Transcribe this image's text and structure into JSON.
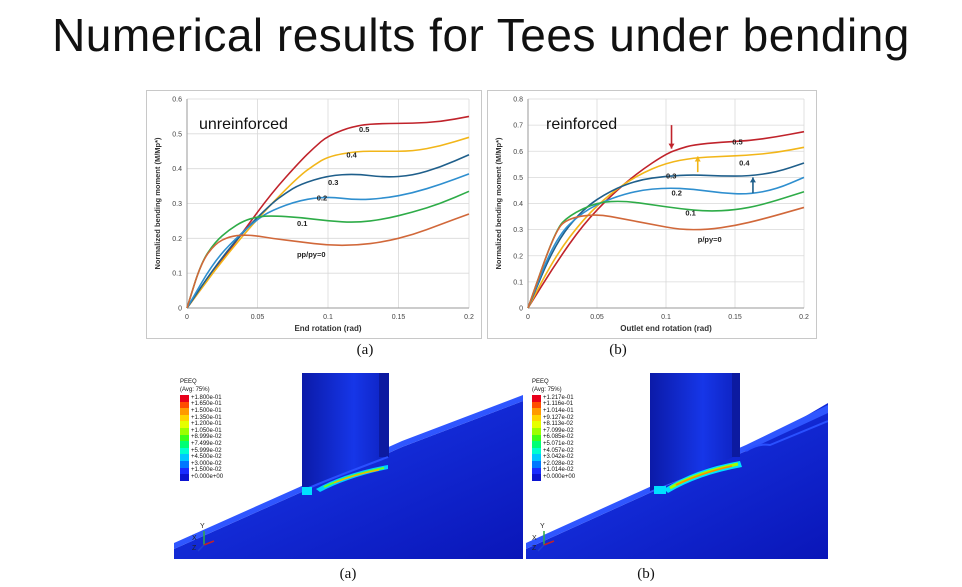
{
  "page": {
    "title": "Numerical results for Tees under bending"
  },
  "chart_data": [
    {
      "type": "line",
      "panel_label": "unreinforced",
      "caption": "(a)",
      "xlabel": "End rotation (rad)",
      "ylabel": "Normalized bending moment (M/Mp*)",
      "xlim": [
        0,
        0.2
      ],
      "ylim": [
        0,
        0.6
      ],
      "xticks": [
        "0",
        "0.05",
        "0.1",
        "0.15",
        "0.2"
      ],
      "yticks": [
        "0",
        "0.1",
        "0.2",
        "0.3",
        "0.4",
        "0.5",
        "0.6"
      ],
      "grid": true,
      "series": [
        {
          "name": "0.5",
          "color": "#c0232b",
          "x": [
            0,
            0.02,
            0.04,
            0.06,
            0.08,
            0.09,
            0.1,
            0.12,
            0.14,
            0.16,
            0.18,
            0.2
          ],
          "y": [
            0,
            0.11,
            0.22,
            0.33,
            0.42,
            0.46,
            0.495,
            0.525,
            0.53,
            0.53,
            0.535,
            0.55
          ],
          "label_at": [
            0.122,
            0.505
          ]
        },
        {
          "name": "0.4",
          "color": "#f2b619",
          "x": [
            0,
            0.02,
            0.04,
            0.06,
            0.08,
            0.09,
            0.1,
            0.12,
            0.14,
            0.16,
            0.18,
            0.2
          ],
          "y": [
            0,
            0.11,
            0.21,
            0.3,
            0.38,
            0.41,
            0.435,
            0.45,
            0.45,
            0.45,
            0.465,
            0.49
          ],
          "label_at": [
            0.113,
            0.432
          ]
        },
        {
          "name": "0.3",
          "color": "#1f5f8b",
          "x": [
            0,
            0.02,
            0.04,
            0.06,
            0.07,
            0.08,
            0.1,
            0.12,
            0.14,
            0.16,
            0.18,
            0.2
          ],
          "y": [
            0,
            0.12,
            0.22,
            0.3,
            0.33,
            0.355,
            0.38,
            0.385,
            0.375,
            0.38,
            0.405,
            0.44
          ],
          "label_at": [
            0.1,
            0.353
          ]
        },
        {
          "name": "0.2",
          "color": "#2f8fcf",
          "x": [
            0,
            0.02,
            0.04,
            0.05,
            0.06,
            0.08,
            0.1,
            0.12,
            0.14,
            0.16,
            0.18,
            0.2
          ],
          "y": [
            0,
            0.14,
            0.22,
            0.255,
            0.28,
            0.31,
            0.32,
            0.31,
            0.315,
            0.33,
            0.355,
            0.385
          ],
          "label_at": [
            0.092,
            0.308
          ]
        },
        {
          "name": "0.1",
          "color": "#2eac48",
          "x": [
            0,
            0.01,
            0.02,
            0.03,
            0.04,
            0.05,
            0.06,
            0.08,
            0.1,
            0.12,
            0.14,
            0.16,
            0.18,
            0.2
          ],
          "y": [
            0,
            0.13,
            0.19,
            0.225,
            0.25,
            0.262,
            0.265,
            0.26,
            0.25,
            0.245,
            0.255,
            0.275,
            0.3,
            0.335
          ],
          "label_at": [
            0.078,
            0.235
          ]
        },
        {
          "name": "pp/py=0",
          "color": "#d1683a",
          "x": [
            0,
            0.01,
            0.02,
            0.03,
            0.04,
            0.05,
            0.06,
            0.08,
            0.1,
            0.12,
            0.14,
            0.16,
            0.18,
            0.2
          ],
          "y": [
            0,
            0.13,
            0.185,
            0.205,
            0.21,
            0.207,
            0.2,
            0.19,
            0.18,
            0.18,
            0.19,
            0.21,
            0.24,
            0.27
          ],
          "label_at": [
            0.078,
            0.146
          ]
        }
      ]
    },
    {
      "type": "line",
      "panel_label": "reinforced",
      "caption": "(b)",
      "xlabel": "Outlet end rotation (rad)",
      "ylabel": "Normalized bending moment (M/Mp*)",
      "xlim": [
        0,
        0.2
      ],
      "ylim": [
        0,
        0.8
      ],
      "xticks": [
        "0",
        "0.05",
        "0.1",
        "0.15",
        "0.2"
      ],
      "yticks": [
        "0",
        "0.1",
        "0.2",
        "0.3",
        "0.4",
        "0.5",
        "0.6",
        "0.7",
        "0.8"
      ],
      "grid": true,
      "series": [
        {
          "name": "0.5",
          "color": "#c0232b",
          "x": [
            0,
            0.02,
            0.04,
            0.06,
            0.08,
            0.1,
            0.11,
            0.12,
            0.14,
            0.16,
            0.18,
            0.2
          ],
          "y": [
            0,
            0.17,
            0.32,
            0.43,
            0.52,
            0.59,
            0.61,
            0.625,
            0.635,
            0.64,
            0.655,
            0.675
          ],
          "label_at": [
            0.148,
            0.625
          ]
        },
        {
          "name": "0.4",
          "color": "#f2b619",
          "x": [
            0,
            0.02,
            0.04,
            0.06,
            0.08,
            0.1,
            0.12,
            0.14,
            0.16,
            0.18,
            0.2
          ],
          "y": [
            0,
            0.2,
            0.34,
            0.44,
            0.51,
            0.555,
            0.575,
            0.58,
            0.585,
            0.595,
            0.615
          ],
          "label_at": [
            0.153,
            0.545
          ]
        },
        {
          "name": "0.3",
          "color": "#1f5f8b",
          "x": [
            0,
            0.02,
            0.04,
            0.06,
            0.08,
            0.1,
            0.12,
            0.14,
            0.16,
            0.18,
            0.2
          ],
          "y": [
            0,
            0.25,
            0.38,
            0.45,
            0.49,
            0.505,
            0.51,
            0.505,
            0.505,
            0.52,
            0.555
          ],
          "label_at": [
            0.1,
            0.495
          ]
        },
        {
          "name": "0.2",
          "color": "#2f8fcf",
          "x": [
            0,
            0.02,
            0.04,
            0.06,
            0.08,
            0.1,
            0.12,
            0.14,
            0.16,
            0.18,
            0.2
          ],
          "y": [
            0,
            0.27,
            0.37,
            0.42,
            0.45,
            0.46,
            0.455,
            0.44,
            0.435,
            0.455,
            0.5
          ],
          "label_at": [
            0.104,
            0.43
          ]
        },
        {
          "name": "0.1",
          "color": "#2eac48",
          "x": [
            0,
            0.02,
            0.03,
            0.05,
            0.07,
            0.09,
            0.11,
            0.13,
            0.15,
            0.17,
            0.2
          ],
          "y": [
            0,
            0.3,
            0.355,
            0.405,
            0.41,
            0.395,
            0.38,
            0.37,
            0.375,
            0.395,
            0.445
          ],
          "label_at": [
            0.114,
            0.355
          ]
        },
        {
          "name": "p/py=0",
          "color": "#d1683a",
          "x": [
            0,
            0.02,
            0.03,
            0.05,
            0.07,
            0.09,
            0.11,
            0.13,
            0.15,
            0.17,
            0.2
          ],
          "y": [
            0,
            0.3,
            0.345,
            0.36,
            0.34,
            0.32,
            0.3,
            0.3,
            0.315,
            0.34,
            0.385
          ],
          "label_at": [
            0.123,
            0.253
          ]
        }
      ],
      "arrows": [
        {
          "color": "#c0232b",
          "x": 0.104,
          "y_from": 0.7,
          "y_to": 0.61
        },
        {
          "color": "#f2b619",
          "x": 0.123,
          "y_from": 0.52,
          "y_to": 0.58
        },
        {
          "color": "#1f5f8b",
          "x": 0.163,
          "y_from": 0.44,
          "y_to": 0.5
        }
      ]
    }
  ],
  "fea": [
    {
      "caption": "(a)",
      "legend_title": "PEEQ",
      "legend_subtitle": "(Avg: 75%)",
      "legend_values": [
        "+1.800e-01",
        "+1.650e-01",
        "+1.500e-01",
        "+1.350e-01",
        "+1.200e-01",
        "+1.050e-01",
        "+8.999e-02",
        "+7.499e-02",
        "+5.999e-02",
        "+4.500e-02",
        "+3.000e-02",
        "+1.500e-02",
        "+0.000e+00"
      ]
    },
    {
      "caption": "(b)",
      "legend_title": "PEEQ",
      "legend_subtitle": "(Avg: 75%)",
      "legend_values": [
        "+1.217e-01",
        "+1.116e-01",
        "+1.014e-01",
        "+9.127e-02",
        "+8.113e-02",
        "+7.099e-02",
        "+6.085e-02",
        "+5.071e-02",
        "+4.057e-02",
        "+3.042e-02",
        "+2.028e-02",
        "+1.014e-02",
        "+0.000e+00"
      ]
    }
  ],
  "contour_colors": [
    "#e8001a",
    "#ff4d00",
    "#ff9a00",
    "#ffd400",
    "#e6ff00",
    "#9cff00",
    "#3cff18",
    "#00ff74",
    "#00ffd0",
    "#00c8ff",
    "#0078ff",
    "#1a2cff",
    "#0c14d0"
  ],
  "triad": {
    "y": "Y",
    "x": "X",
    "z": "Z"
  }
}
